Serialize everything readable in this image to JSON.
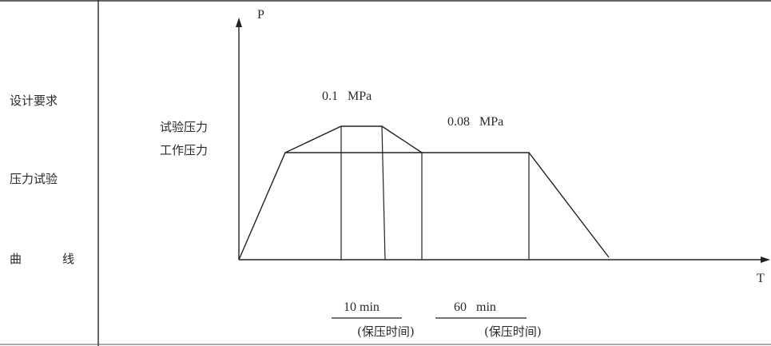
{
  "left_column": {
    "line1": "设计要求",
    "line2": "压力试验",
    "line3_a": "曲",
    "line3_b": "线"
  },
  "axes": {
    "y_label": "P",
    "x_label": "T"
  },
  "labels": {
    "test_pressure": "试验压力",
    "work_pressure": "工作压力",
    "test_value": "0.1   MPa",
    "work_value": "0.08   MPa"
  },
  "hold_times": {
    "first": "10 min",
    "first_note": "(保压时间)",
    "second": "60   min",
    "second_note": "(保压时间)"
  }
}
